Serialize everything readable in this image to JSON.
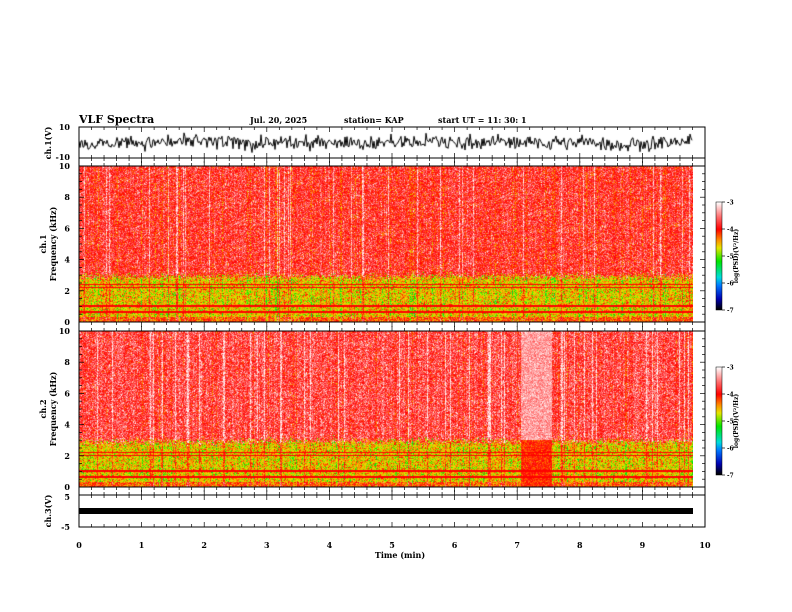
{
  "header": {
    "title": "VLF Spectra",
    "date": "Jul. 20, 2025",
    "station": "station= KAP",
    "start": "start  UT =   11: 30: 1"
  },
  "chart_data": [
    {
      "type": "line",
      "name": "ch1-waveform",
      "ylabel": "ch.1(V)",
      "ylim": [
        -10,
        10
      ],
      "ytick_labels": [
        "10",
        "-10"
      ],
      "xlim": [
        0,
        10
      ],
      "description_values": {
        "mean": 0,
        "amplitude_range": [
          -8,
          8
        ]
      }
    },
    {
      "type": "heatmap",
      "name": "ch1-spectrogram",
      "ylabel": "ch.1\nFrequency (kHz)",
      "ylabel_ch": "ch.1",
      "ylabel_freq": "Frequency  (kHz)",
      "ylim": [
        0,
        10
      ],
      "ytick_labels": [
        "0",
        "2",
        "4",
        "6",
        "8",
        "10"
      ],
      "xlim": [
        0,
        9.85
      ],
      "colorbar": {
        "label": "log(PSD)(V²/Hz)",
        "range": [
          -7,
          -3
        ],
        "tick_labels": [
          "-3",
          "-4",
          "-5",
          "-6",
          "-7"
        ]
      },
      "bands": [
        {
          "freq_khz": [
            0,
            3
          ],
          "log_psd": -4.6
        },
        {
          "freq_khz": [
            3,
            10
          ],
          "log_psd": -3.8
        }
      ],
      "lines_khz": [
        0.6,
        1.0,
        2.2,
        2.4
      ]
    },
    {
      "type": "heatmap",
      "name": "ch2-spectrogram",
      "ylabel_ch": "ch.2",
      "ylabel_freq": "Frequency  (kHz)",
      "ylim": [
        0,
        10
      ],
      "ytick_labels": [
        "0",
        "2",
        "4",
        "6",
        "8",
        "10"
      ],
      "xlim": [
        0,
        9.85
      ],
      "colorbar": {
        "label": "log(PSD)(V²/Hz)",
        "range": [
          -7,
          -3
        ],
        "tick_labels": [
          "-3",
          "-4",
          "-5",
          "-6",
          "-7"
        ]
      },
      "bands": [
        {
          "freq_khz": [
            0,
            3
          ],
          "log_psd": -4.6
        },
        {
          "freq_khz": [
            3,
            10
          ],
          "log_psd": -3.7
        }
      ],
      "lines_khz": [
        0.6,
        1.0,
        2.0,
        2.2
      ],
      "enhanced_interval_min": [
        7.1,
        7.6
      ]
    },
    {
      "type": "line",
      "name": "ch3-waveform",
      "ylabel": "ch.3(V)",
      "ylim": [
        -5,
        5
      ],
      "ytick_labels": [
        "5",
        "-5"
      ],
      "level": 0,
      "xlim": [
        0,
        10
      ]
    }
  ],
  "xaxis": {
    "label": "Time  (min)",
    "range": [
      0,
      10
    ],
    "tick_labels": [
      "0",
      "1",
      "2",
      "3",
      "4",
      "5",
      "6",
      "7",
      "8",
      "9",
      "10"
    ]
  }
}
